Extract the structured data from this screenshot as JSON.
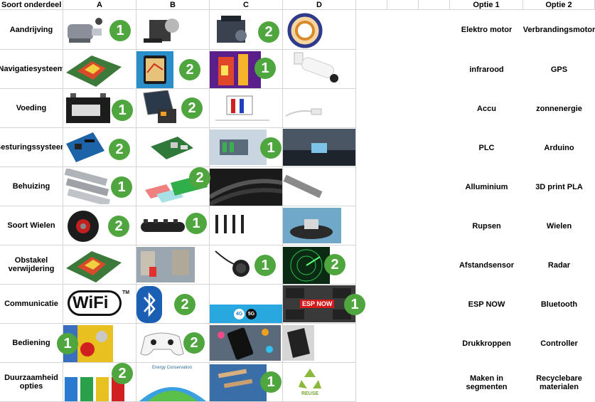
{
  "headers": {
    "category": "Soort onderdeel",
    "col_a": "A",
    "col_b": "B",
    "col_c": "C",
    "col_d": "D",
    "option1": "Optie 1",
    "option2": "Optie 2"
  },
  "rows": [
    {
      "label": "Aandrijving",
      "option1": "Elektro motor",
      "option2": "Verbrandingsmotor",
      "badge_a": "1",
      "badge_c": "2"
    },
    {
      "label": "Navigatiesysteem",
      "option1": "infrarood",
      "option2": "GPS",
      "badge_b": "2",
      "badge_c": "1"
    },
    {
      "label": "Voeding",
      "option1": "Accu",
      "option2": "zonnenergie",
      "badge_a": "1",
      "badge_b": "2"
    },
    {
      "label": "Besturingssysteem",
      "option1": "PLC",
      "option2": "Arduino",
      "badge_a": "2",
      "badge_c": "1"
    },
    {
      "label": "Behuizing",
      "option1": "Alluminium",
      "option2": "3D print PLA",
      "badge_a": "1",
      "badge_b": "2"
    },
    {
      "label": "Soort Wielen",
      "option1": "Rupsen",
      "option2": "Wielen",
      "badge_a": "2",
      "badge_b": "1"
    },
    {
      "label": "Obstakel verwijdering",
      "option1": "Afstandsensor",
      "option2": "Radar",
      "badge_c": "1",
      "badge_d": "2"
    },
    {
      "label": "Communicatie",
      "option1": "ESP NOW",
      "option2": "Bluetooth",
      "badge_b": "2",
      "badge_d": "1"
    },
    {
      "label": "Bediening",
      "option1": "Drukkroppen",
      "option2": "Controller",
      "badge_a": "1",
      "badge_b": "2"
    },
    {
      "label": "Duurzaamheid opties",
      "option1": "Maken in segmenten",
      "option2": "Recyclebare materialen",
      "badge_a": "2",
      "badge_c": "1"
    }
  ],
  "image_text": {
    "wifi": "WiFi",
    "tm": "TM",
    "espnow": "ESP NOW",
    "g4": "4G",
    "g5": "5G",
    "reuse": "REUSE",
    "energy": "Energy Conservation"
  },
  "colors": {
    "badge": "#4fa63f",
    "grid": "#d4d4d4"
  },
  "icons": [
    "motor-icon",
    "bluetooth-icon",
    "recycle-icon",
    "wifi-logo",
    "controller-icon"
  ]
}
